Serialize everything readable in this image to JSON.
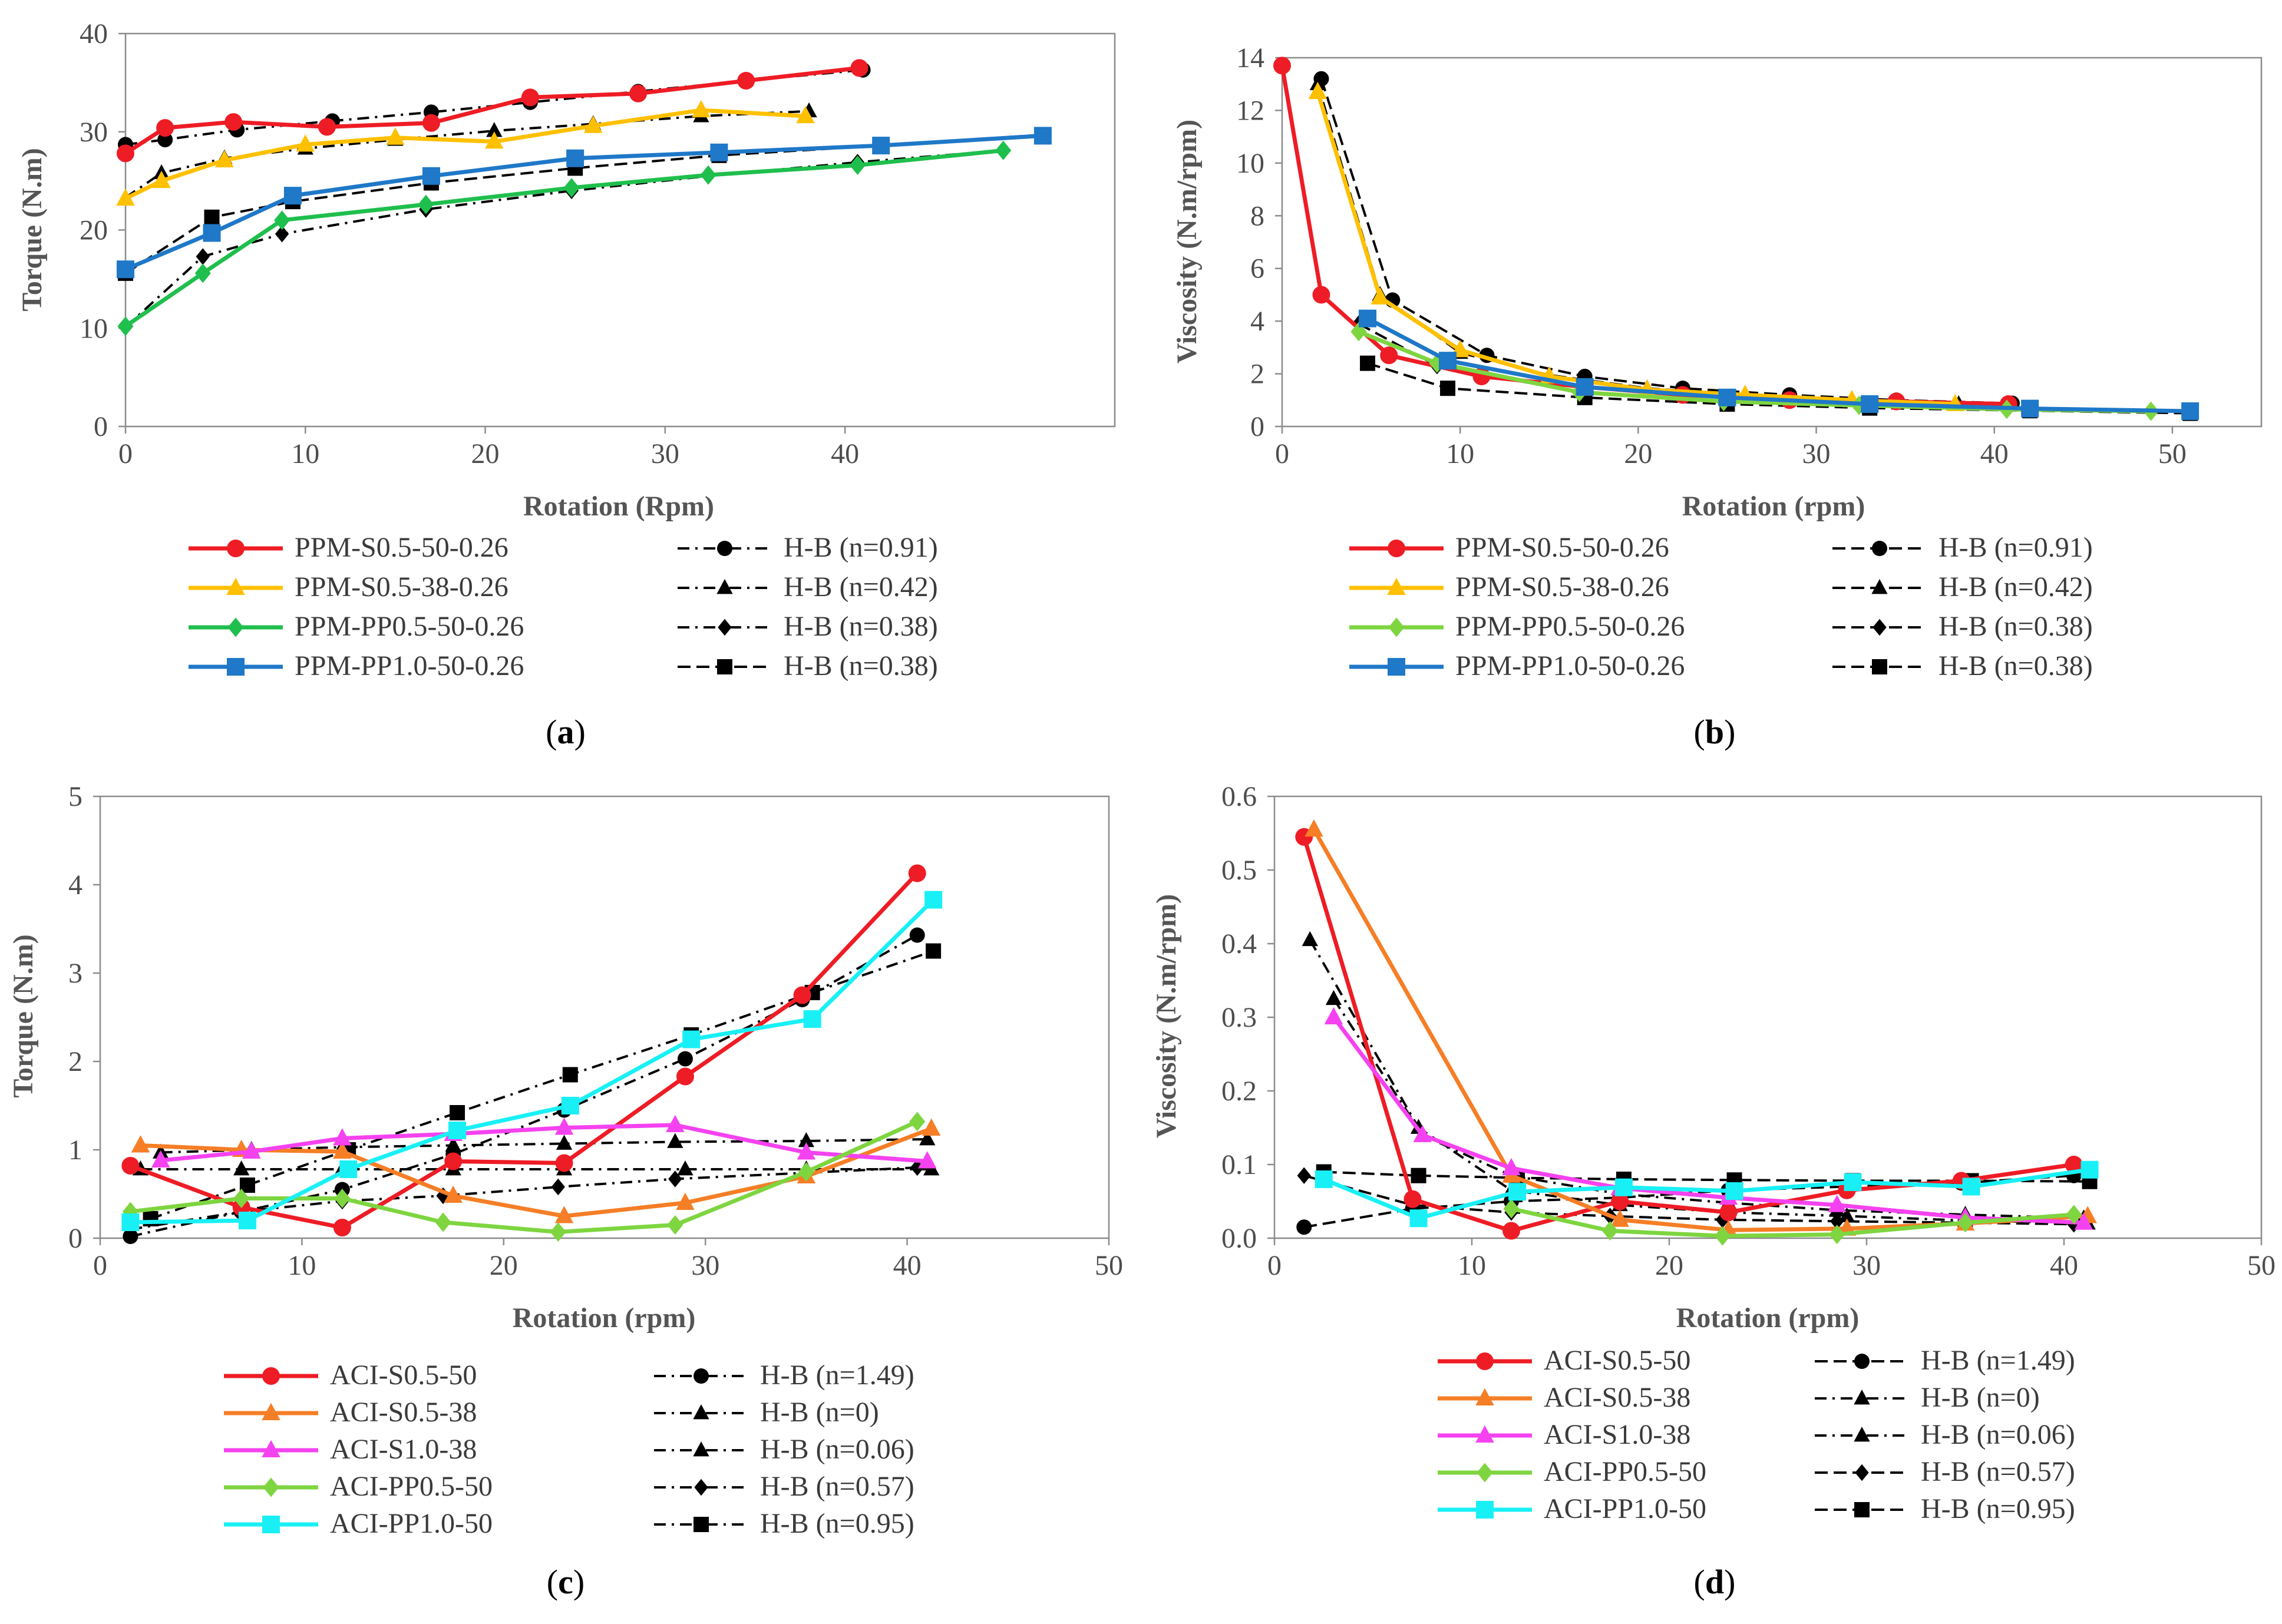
{
  "colors": {
    "red": "#ee1c25",
    "yellow": "#ffc000",
    "green": "#1fbf4d",
    "blue": "#1f78c8",
    "orange": "#f57e26",
    "magenta": "#f542f0",
    "lime": "#7ed540",
    "cyan": "#19f0f5",
    "black": "#000000"
  },
  "chart_data": [
    {
      "type": "line",
      "caption": "a",
      "title": "",
      "xlabel": "Rotation (Rpm)",
      "ylabel": "Torque (N.m)",
      "xlim": [
        0,
        55
      ],
      "ylim": [
        0,
        40
      ],
      "xticks": [
        0,
        10,
        20,
        30,
        40
      ],
      "yticks": [
        0,
        10,
        20,
        30,
        40
      ],
      "legend_position": "bottom",
      "series": [
        {
          "name": "PPM-S0.5-50-0.26",
          "color": "red",
          "marker": "circle",
          "dash": "solid",
          "x": [
            0,
            2.2,
            6,
            11.2,
            17,
            22.5,
            28.5,
            34.5,
            40.8
          ],
          "y": [
            27.8,
            30.4,
            31.0,
            30.5,
            30.9,
            33.5,
            33.9,
            35.2,
            36.5
          ]
        },
        {
          "name": "PPM-S0.5-38-0.26",
          "color": "yellow",
          "marker": "triangle",
          "dash": "solid",
          "x": [
            0,
            2,
            5.5,
            10,
            15,
            20.5,
            26,
            32,
            37.8
          ],
          "y": [
            23.2,
            25.0,
            27.1,
            28.7,
            29.4,
            29.0,
            30.6,
            32.2,
            31.6
          ]
        },
        {
          "name": "PPM-PP0.5-50-0.26",
          "color": "green",
          "marker": "diamond",
          "dash": "solid",
          "x": [
            0,
            4.3,
            8.7,
            16.7,
            24.8,
            32.4,
            40.7,
            48.8
          ],
          "y": [
            10.2,
            15.6,
            21.0,
            22.6,
            24.3,
            25.6,
            26.6,
            28.1
          ]
        },
        {
          "name": "PPM-PP1.0-50-0.26",
          "color": "blue",
          "marker": "square",
          "dash": "solid",
          "x": [
            0,
            4.8,
            9.3,
            17,
            25,
            33,
            42,
            51
          ],
          "y": [
            16.0,
            19.7,
            23.5,
            25.5,
            27.3,
            27.9,
            28.6,
            29.6
          ]
        },
        {
          "name": "H-B (n=0.91)",
          "color": "black",
          "marker": "circle",
          "dash": "dashdot",
          "x": [
            0,
            2.2,
            6.2,
            11.5,
            17,
            22.5,
            28.5,
            34.5,
            41
          ],
          "y": [
            28.7,
            29.2,
            30.2,
            31.1,
            32.0,
            33.0,
            34.1,
            35.2,
            36.3
          ]
        },
        {
          "name": "H-B (n=0.42)",
          "color": "black",
          "marker": "triangle",
          "dash": "dashdot",
          "x": [
            0,
            2,
            5.5,
            10,
            15,
            20.5,
            26,
            32,
            38
          ],
          "y": [
            23.3,
            25.8,
            27.3,
            28.3,
            29.2,
            30.1,
            30.8,
            31.6,
            32.1
          ]
        },
        {
          "name": "H-B (n=0.38)",
          "color": "black",
          "marker": "diamond",
          "dash": "dashdot",
          "x": [
            0,
            4.3,
            8.7,
            16.7,
            24.8,
            32.4,
            40.7,
            48.8
          ],
          "y": [
            10.1,
            17.3,
            19.6,
            22.1,
            24.0,
            25.5,
            26.9,
            28.1
          ]
        },
        {
          "name": "H-B (n=0.38)",
          "color": "black",
          "marker": "square",
          "dash": "longdash",
          "x": [
            0,
            4.8,
            9.3,
            17,
            25,
            33,
            42,
            51
          ],
          "y": [
            15.6,
            21.3,
            22.9,
            24.8,
            26.3,
            27.6,
            28.6,
            29.7
          ]
        }
      ]
    },
    {
      "type": "line",
      "caption": "b",
      "title": "",
      "xlabel": "Rotation (rpm)",
      "ylabel": "Viscosity (N.m/rpm)",
      "xlim": [
        0,
        55
      ],
      "ylim": [
        0,
        14
      ],
      "xticks": [
        0,
        10,
        20,
        30,
        40,
        50
      ],
      "yticks": [
        0,
        2,
        4,
        6,
        8,
        10,
        12,
        14
      ],
      "legend_position": "bottom",
      "series": [
        {
          "name": "PPM-S0.5-50-0.26",
          "color": "red",
          "marker": "circle",
          "dash": "solid",
          "x": [
            0,
            2.2,
            6,
            11.2,
            17,
            22.5,
            28.5,
            34.5,
            40.8
          ],
          "y": [
            13.7,
            5.0,
            2.7,
            1.9,
            1.5,
            1.2,
            1.0,
            0.95,
            0.85
          ]
        },
        {
          "name": "PPM-S0.5-38-0.26",
          "color": "yellow",
          "marker": "triangle",
          "dash": "solid",
          "x": [
            2,
            5.5,
            10,
            15,
            20.5,
            26,
            32,
            37.8
          ],
          "y": [
            12.7,
            4.9,
            2.9,
            1.9,
            1.4,
            1.2,
            1.0,
            0.85
          ]
        },
        {
          "name": "PPM-PP0.5-50-0.26",
          "color": "lime",
          "marker": "diamond",
          "dash": "solid",
          "x": [
            4.3,
            8.7,
            16.7,
            24.8,
            32.4,
            40.7,
            48.8
          ],
          "y": [
            3.6,
            2.4,
            1.3,
            0.95,
            0.8,
            0.65,
            0.58
          ]
        },
        {
          "name": "PPM-PP1.0-50-0.26",
          "color": "blue",
          "marker": "square",
          "dash": "solid",
          "x": [
            4.8,
            9.3,
            17,
            25,
            33,
            42,
            51
          ],
          "y": [
            4.1,
            2.5,
            1.5,
            1.1,
            0.85,
            0.68,
            0.58
          ]
        },
        {
          "name": "H-B (n=0.91)",
          "color": "black",
          "marker": "circle",
          "dash": "longdash",
          "x": [
            2.2,
            6.2,
            11.5,
            17,
            22.5,
            28.5,
            34.5,
            41
          ],
          "y": [
            13.2,
            4.8,
            2.7,
            1.9,
            1.45,
            1.2,
            1.0,
            0.88
          ]
        },
        {
          "name": "H-B (n=0.42)",
          "color": "black",
          "marker": "triangle",
          "dash": "longdash",
          "x": [
            2,
            5.5,
            10,
            15,
            20.5,
            26,
            32,
            38
          ],
          "y": [
            13.0,
            5.0,
            2.8,
            1.95,
            1.45,
            1.2,
            1.0,
            0.85
          ]
        },
        {
          "name": "H-B (n=0.38)",
          "color": "black",
          "marker": "diamond",
          "dash": "longdash",
          "x": [
            4.3,
            8.7,
            16.7,
            24.8,
            32.4,
            40.7,
            48.8
          ],
          "y": [
            3.9,
            2.3,
            1.3,
            0.98,
            0.8,
            0.66,
            0.58
          ]
        },
        {
          "name": "H-B (n=0.38)",
          "color": "black",
          "marker": "square",
          "dash": "longdash",
          "x": [
            4.8,
            9.3,
            17,
            25,
            33,
            42,
            51
          ],
          "y": [
            2.4,
            1.45,
            1.1,
            0.85,
            0.7,
            0.6,
            0.5
          ]
        }
      ]
    },
    {
      "type": "line",
      "caption": "c",
      "title": "",
      "xlabel": "Rotation (rpm)",
      "ylabel": "Torque (N.m)",
      "xlim": [
        0,
        50
      ],
      "ylim": [
        0,
        5
      ],
      "xticks": [
        0,
        10,
        20,
        30,
        40,
        50
      ],
      "yticks": [
        0,
        1,
        2,
        3,
        4,
        5
      ],
      "legend_position": "bottom",
      "series": [
        {
          "name": "ACI-S0.5-50",
          "color": "red",
          "marker": "circle",
          "dash": "solid",
          "x": [
            1.5,
            7,
            12,
            17.5,
            23,
            29,
            34.8,
            40.5
          ],
          "y": [
            0.82,
            0.35,
            0.12,
            0.87,
            0.85,
            1.83,
            2.75,
            4.13
          ]
        },
        {
          "name": "ACI-S0.5-38",
          "color": "orange",
          "marker": "triangle",
          "dash": "solid",
          "x": [
            2,
            7,
            12,
            17.5,
            23,
            29,
            35,
            41.2
          ],
          "y": [
            1.05,
            1.0,
            0.98,
            0.48,
            0.25,
            0.4,
            0.7,
            1.24
          ]
        },
        {
          "name": "ACI-S1.0-38",
          "color": "magenta",
          "marker": "triangle",
          "dash": "solid",
          "x": [
            3,
            7.5,
            12,
            17.5,
            23,
            28.5,
            35,
            41
          ],
          "y": [
            0.88,
            0.98,
            1.13,
            1.18,
            1.25,
            1.28,
            0.97,
            0.87
          ]
        },
        {
          "name": "ACI-PP0.5-50",
          "color": "lime",
          "marker": "diamond",
          "dash": "solid",
          "x": [
            1.5,
            7,
            12,
            17,
            22.7,
            28.5,
            35,
            40.5
          ],
          "y": [
            0.3,
            0.45,
            0.45,
            0.18,
            0.07,
            0.15,
            0.75,
            1.32
          ]
        },
        {
          "name": "ACI-PP1.0-50",
          "color": "cyan",
          "marker": "square",
          "dash": "solid",
          "x": [
            1.5,
            7.3,
            12.3,
            17.7,
            23.3,
            29.3,
            35.3,
            41.3
          ],
          "y": [
            0.18,
            0.2,
            0.78,
            1.22,
            1.5,
            2.25,
            2.48,
            3.83
          ]
        },
        {
          "name": "H-B (n=1.49)",
          "color": "black",
          "marker": "circle",
          "dash": "dashdot",
          "x": [
            1.5,
            7,
            12,
            17.5,
            23,
            29,
            34.8,
            40.5
          ],
          "y": [
            0.02,
            0.3,
            0.55,
            0.95,
            1.45,
            2.03,
            2.7,
            3.43
          ]
        },
        {
          "name": "H-B (n=0)",
          "color": "black",
          "marker": "triangle",
          "dash": "dashdot",
          "x": [
            2,
            7,
            12,
            17.5,
            23,
            29,
            35,
            41.2
          ],
          "y": [
            0.78,
            0.78,
            0.78,
            0.78,
            0.78,
            0.78,
            0.78,
            0.78
          ]
        },
        {
          "name": "H-B (n=0.06)",
          "color": "black",
          "marker": "triangle",
          "dash": "dashdot",
          "x": [
            3,
            7.5,
            12,
            17.5,
            23,
            28.5,
            35,
            41
          ],
          "y": [
            0.97,
            1.0,
            1.03,
            1.05,
            1.07,
            1.09,
            1.1,
            1.12
          ]
        },
        {
          "name": "H-B (n=0.57)",
          "color": "black",
          "marker": "diamond",
          "dash": "dashdot",
          "x": [
            1.5,
            7,
            12,
            17,
            22.7,
            28.5,
            35,
            40.5
          ],
          "y": [
            0.1,
            0.3,
            0.42,
            0.48,
            0.58,
            0.67,
            0.74,
            0.8
          ]
        },
        {
          "name": "H-B (n=0.95)",
          "color": "black",
          "marker": "square",
          "dash": "dashdot",
          "x": [
            2.5,
            7.3,
            12.3,
            17.7,
            23.3,
            29.3,
            35.3,
            41.3
          ],
          "y": [
            0.22,
            0.6,
            1.0,
            1.42,
            1.85,
            2.3,
            2.78,
            3.25
          ]
        }
      ]
    },
    {
      "type": "line",
      "caption": "d",
      "title": "",
      "xlabel": "Rotation (rpm)",
      "ylabel": "Viscosity (N.m/rpm)",
      "xlim": [
        0,
        50
      ],
      "ylim": [
        0,
        0.6
      ],
      "xticks": [
        0,
        10,
        20,
        30,
        40,
        50
      ],
      "yticks": [
        0.0,
        0.1,
        0.2,
        0.3,
        0.4,
        0.5,
        0.6
      ],
      "ytick_labels": [
        "0.0",
        "0.1",
        "0.2",
        "0.3",
        "0.4",
        "0.5",
        "0.6"
      ],
      "legend_position": "bottom",
      "series": [
        {
          "name": "ACI-S0.5-50",
          "color": "red",
          "marker": "circle",
          "dash": "solid",
          "x": [
            1.5,
            7,
            12,
            17.5,
            23,
            29,
            34.8,
            40.5
          ],
          "y": [
            0.545,
            0.053,
            0.01,
            0.05,
            0.035,
            0.065,
            0.078,
            0.1
          ]
        },
        {
          "name": "ACI-S0.5-38",
          "color": "orange",
          "marker": "triangle",
          "dash": "solid",
          "x": [
            2,
            12,
            17.5,
            23,
            29,
            35,
            41.2
          ],
          "y": [
            0.555,
            0.085,
            0.025,
            0.011,
            0.013,
            0.02,
            0.03
          ]
        },
        {
          "name": "ACI-S1.0-38",
          "color": "magenta",
          "marker": "triangle",
          "dash": "solid",
          "x": [
            3,
            7.5,
            12,
            17.5,
            23,
            28.5,
            35,
            41
          ],
          "y": [
            0.3,
            0.14,
            0.095,
            0.068,
            0.055,
            0.045,
            0.028,
            0.021
          ]
        },
        {
          "name": "ACI-PP0.5-50",
          "color": "lime",
          "marker": "diamond",
          "dash": "solid",
          "x": [
            12,
            17,
            22.7,
            28.5,
            35,
            40.5
          ],
          "y": [
            0.04,
            0.01,
            0.003,
            0.005,
            0.021,
            0.032
          ]
        },
        {
          "name": "ACI-PP1.0-50",
          "color": "cyan",
          "marker": "square",
          "dash": "solid",
          "x": [
            2.5,
            7.3,
            12.3,
            17.7,
            23.3,
            29.3,
            35.3,
            41.3
          ],
          "y": [
            0.08,
            0.027,
            0.063,
            0.069,
            0.064,
            0.076,
            0.07,
            0.093
          ]
        },
        {
          "name": "H-B (n=1.49)",
          "color": "black",
          "marker": "circle",
          "dash": "longdash",
          "x": [
            1.5,
            7,
            12,
            17.5,
            23,
            29,
            34.8,
            40.5
          ],
          "y": [
            0.015,
            0.04,
            0.05,
            0.055,
            0.065,
            0.07,
            0.075,
            0.085
          ]
        },
        {
          "name": "H-B (n=0)",
          "color": "black",
          "marker": "triangle",
          "dash": "dashdot",
          "x": [
            1.8,
            7.3,
            12,
            17.5,
            23,
            29,
            35,
            41.2
          ],
          "y": [
            0.405,
            0.15,
            0.065,
            0.045,
            0.035,
            0.03,
            0.024,
            0.02
          ]
        },
        {
          "name": "H-B (n=0.06)",
          "color": "black",
          "marker": "triangle",
          "dash": "dashdot",
          "x": [
            3,
            7.5,
            12,
            17.5,
            23,
            28.5,
            35,
            41
          ],
          "y": [
            0.325,
            0.14,
            0.085,
            0.06,
            0.048,
            0.038,
            0.032,
            0.027
          ]
        },
        {
          "name": "H-B (n=0.57)",
          "color": "black",
          "marker": "diamond",
          "dash": "longdash",
          "x": [
            1.5,
            7,
            12,
            17,
            22.7,
            28.5,
            35,
            40.5
          ],
          "y": [
            0.085,
            0.045,
            0.035,
            0.03,
            0.025,
            0.023,
            0.021,
            0.019
          ]
        },
        {
          "name": "H-B (n=0.95)",
          "color": "black",
          "marker": "square",
          "dash": "longdash",
          "x": [
            2.5,
            7.3,
            12.3,
            17.7,
            23.3,
            29.3,
            35.3,
            41.3
          ],
          "y": [
            0.09,
            0.085,
            0.082,
            0.08,
            0.079,
            0.078,
            0.078,
            0.077
          ]
        }
      ]
    }
  ]
}
